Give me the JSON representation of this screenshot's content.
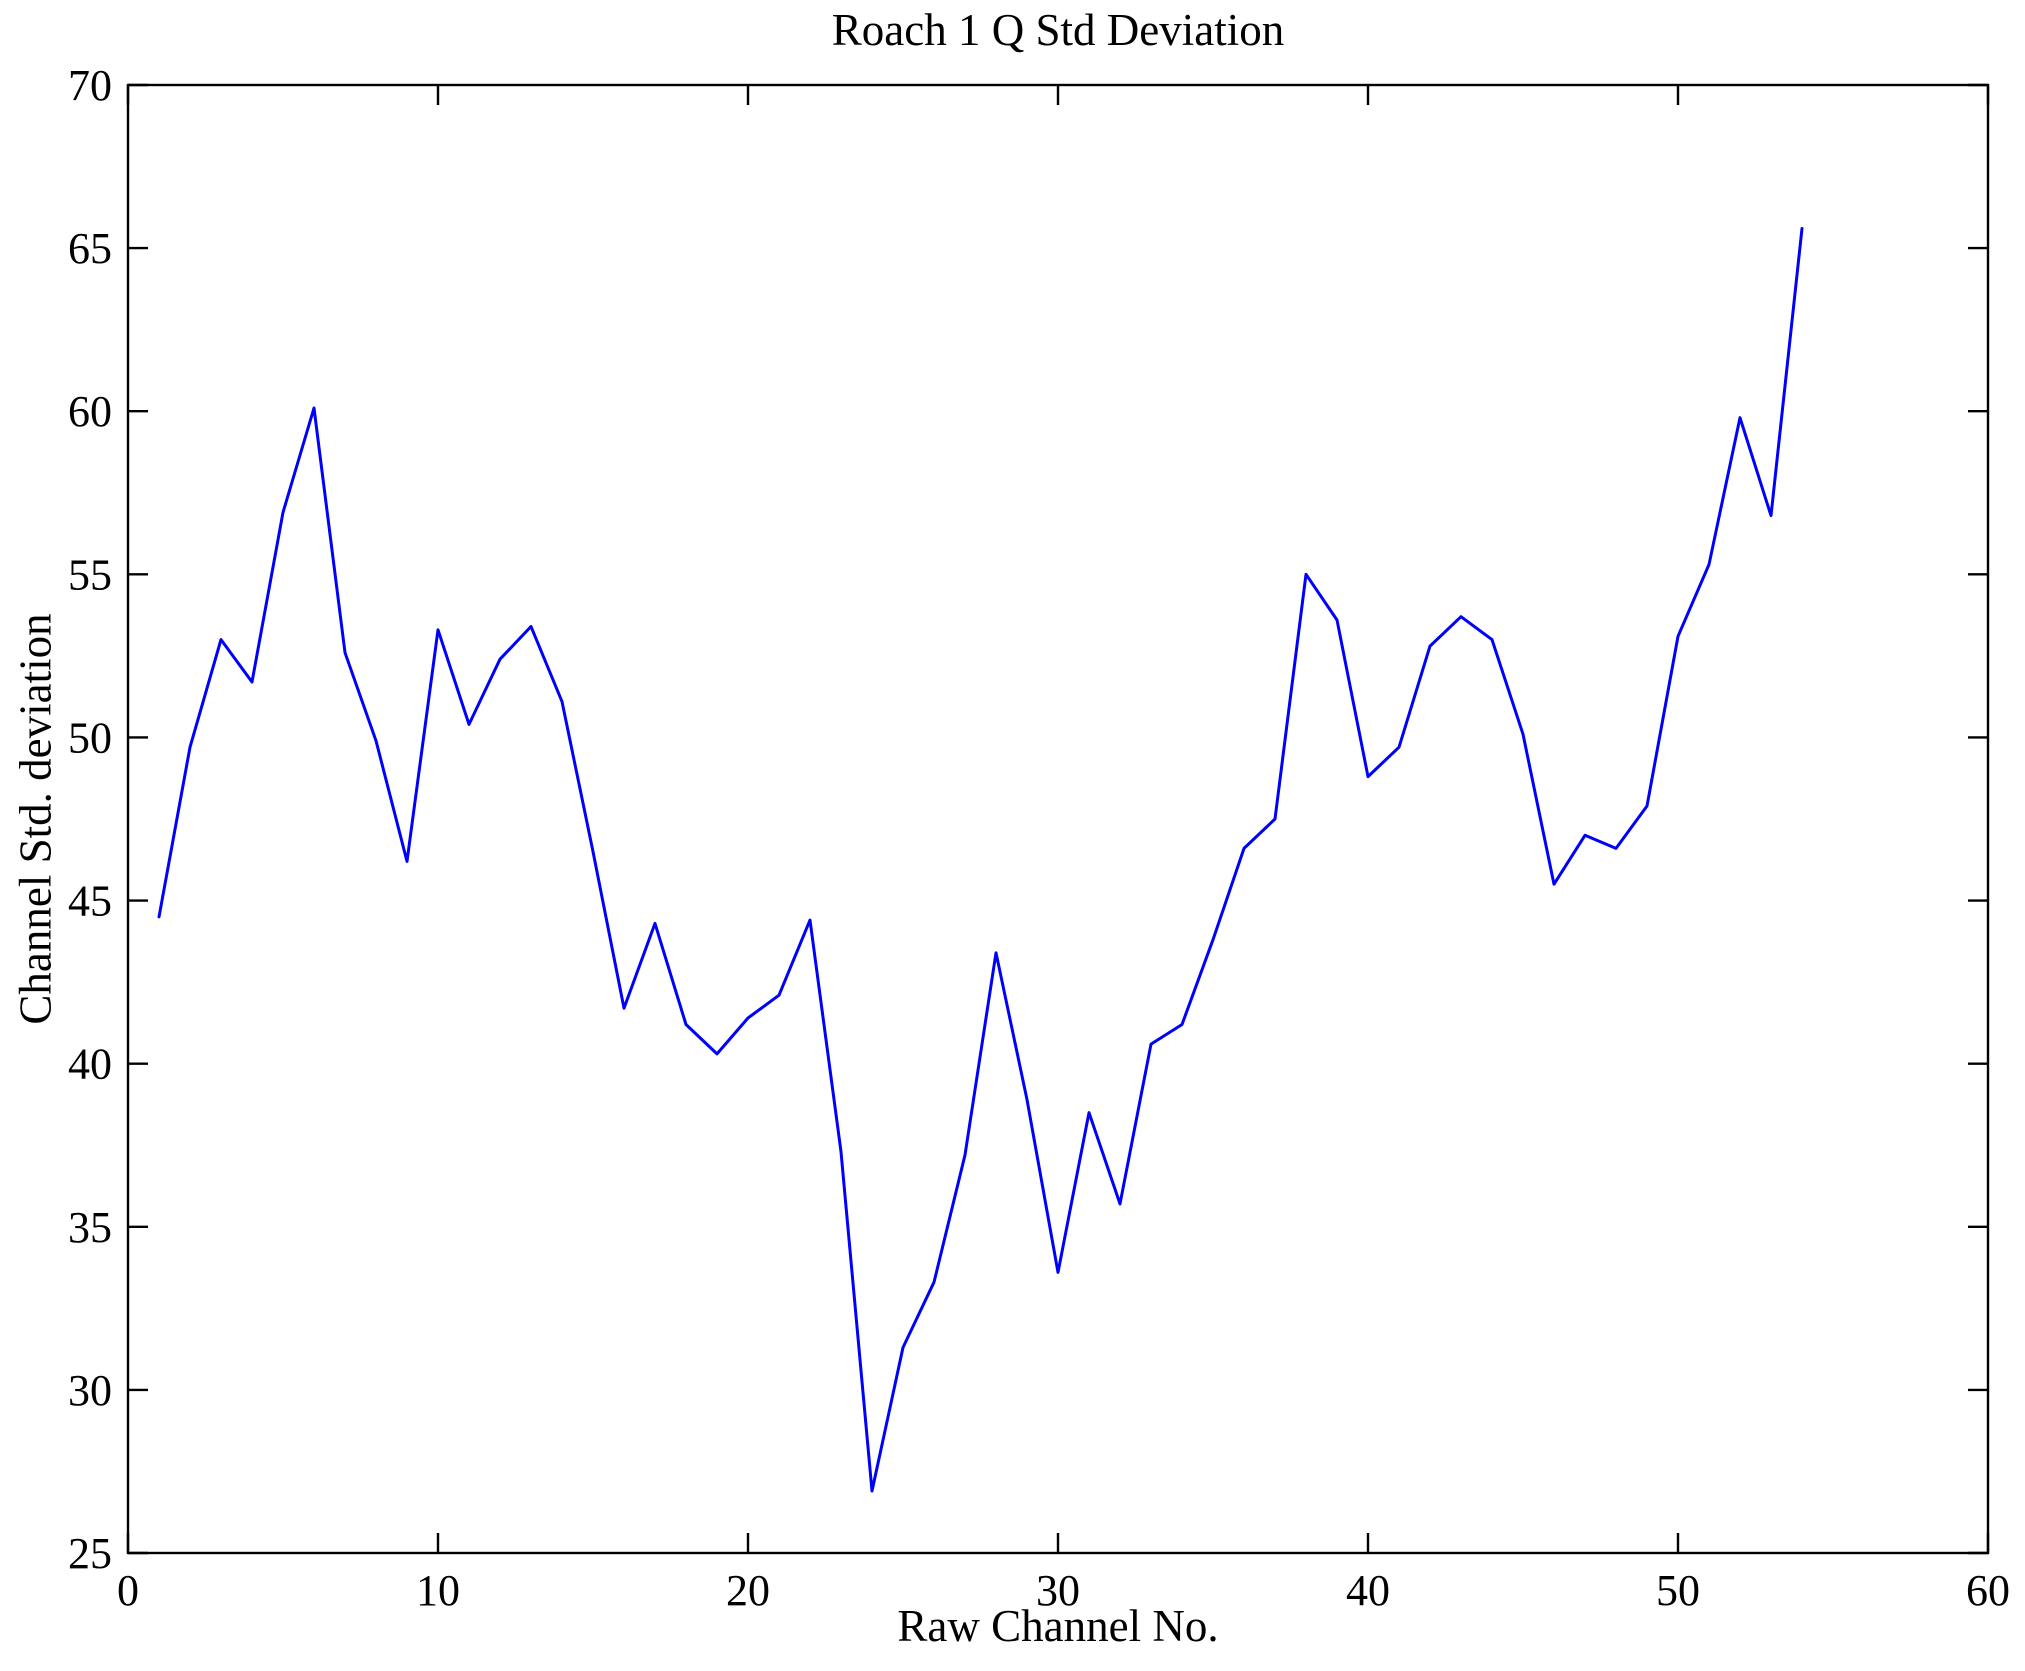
{
  "figure": {
    "background": "#ffffff",
    "axes_color": "#000000"
  },
  "chart_data": {
    "type": "line",
    "title": "Roach 1 Q Std Deviation",
    "xlabel": "Raw Channel No.",
    "ylabel": "Channel Std. deviation",
    "xlim": [
      0,
      60
    ],
    "ylim": [
      25,
      70
    ],
    "xticks": [
      0,
      10,
      20,
      30,
      40,
      50,
      60
    ],
    "yticks": [
      25,
      30,
      35,
      40,
      45,
      50,
      55,
      60,
      65,
      70
    ],
    "grid": false,
    "legend": null,
    "line_color": "#0000FF",
    "x": [
      1,
      2,
      3,
      4,
      5,
      6,
      7,
      8,
      9,
      10,
      11,
      12,
      13,
      14,
      15,
      16,
      17,
      18,
      19,
      20,
      21,
      22,
      23,
      24,
      25,
      26,
      27,
      28,
      29,
      30,
      31,
      32,
      33,
      34,
      35,
      36,
      37,
      38,
      39,
      40,
      41,
      42,
      43,
      44,
      45,
      46,
      47,
      48,
      49,
      50,
      51,
      52,
      53,
      54
    ],
    "values": [
      44.5,
      49.7,
      53.0,
      51.7,
      56.9,
      60.1,
      52.6,
      49.9,
      46.2,
      53.3,
      50.4,
      52.4,
      53.4,
      51.1,
      46.5,
      41.7,
      44.3,
      41.2,
      40.3,
      41.4,
      42.1,
      44.4,
      37.3,
      26.9,
      31.3,
      33.3,
      37.2,
      43.4,
      38.9,
      33.6,
      38.5,
      35.7,
      40.6,
      41.2,
      43.8,
      46.6,
      47.5,
      55.0,
      53.6,
      48.8,
      49.7,
      52.8,
      53.7,
      53.0,
      50.1,
      45.5,
      47.0,
      46.6,
      47.9,
      53.1,
      55.3,
      59.8,
      56.8,
      65.6
    ]
  }
}
